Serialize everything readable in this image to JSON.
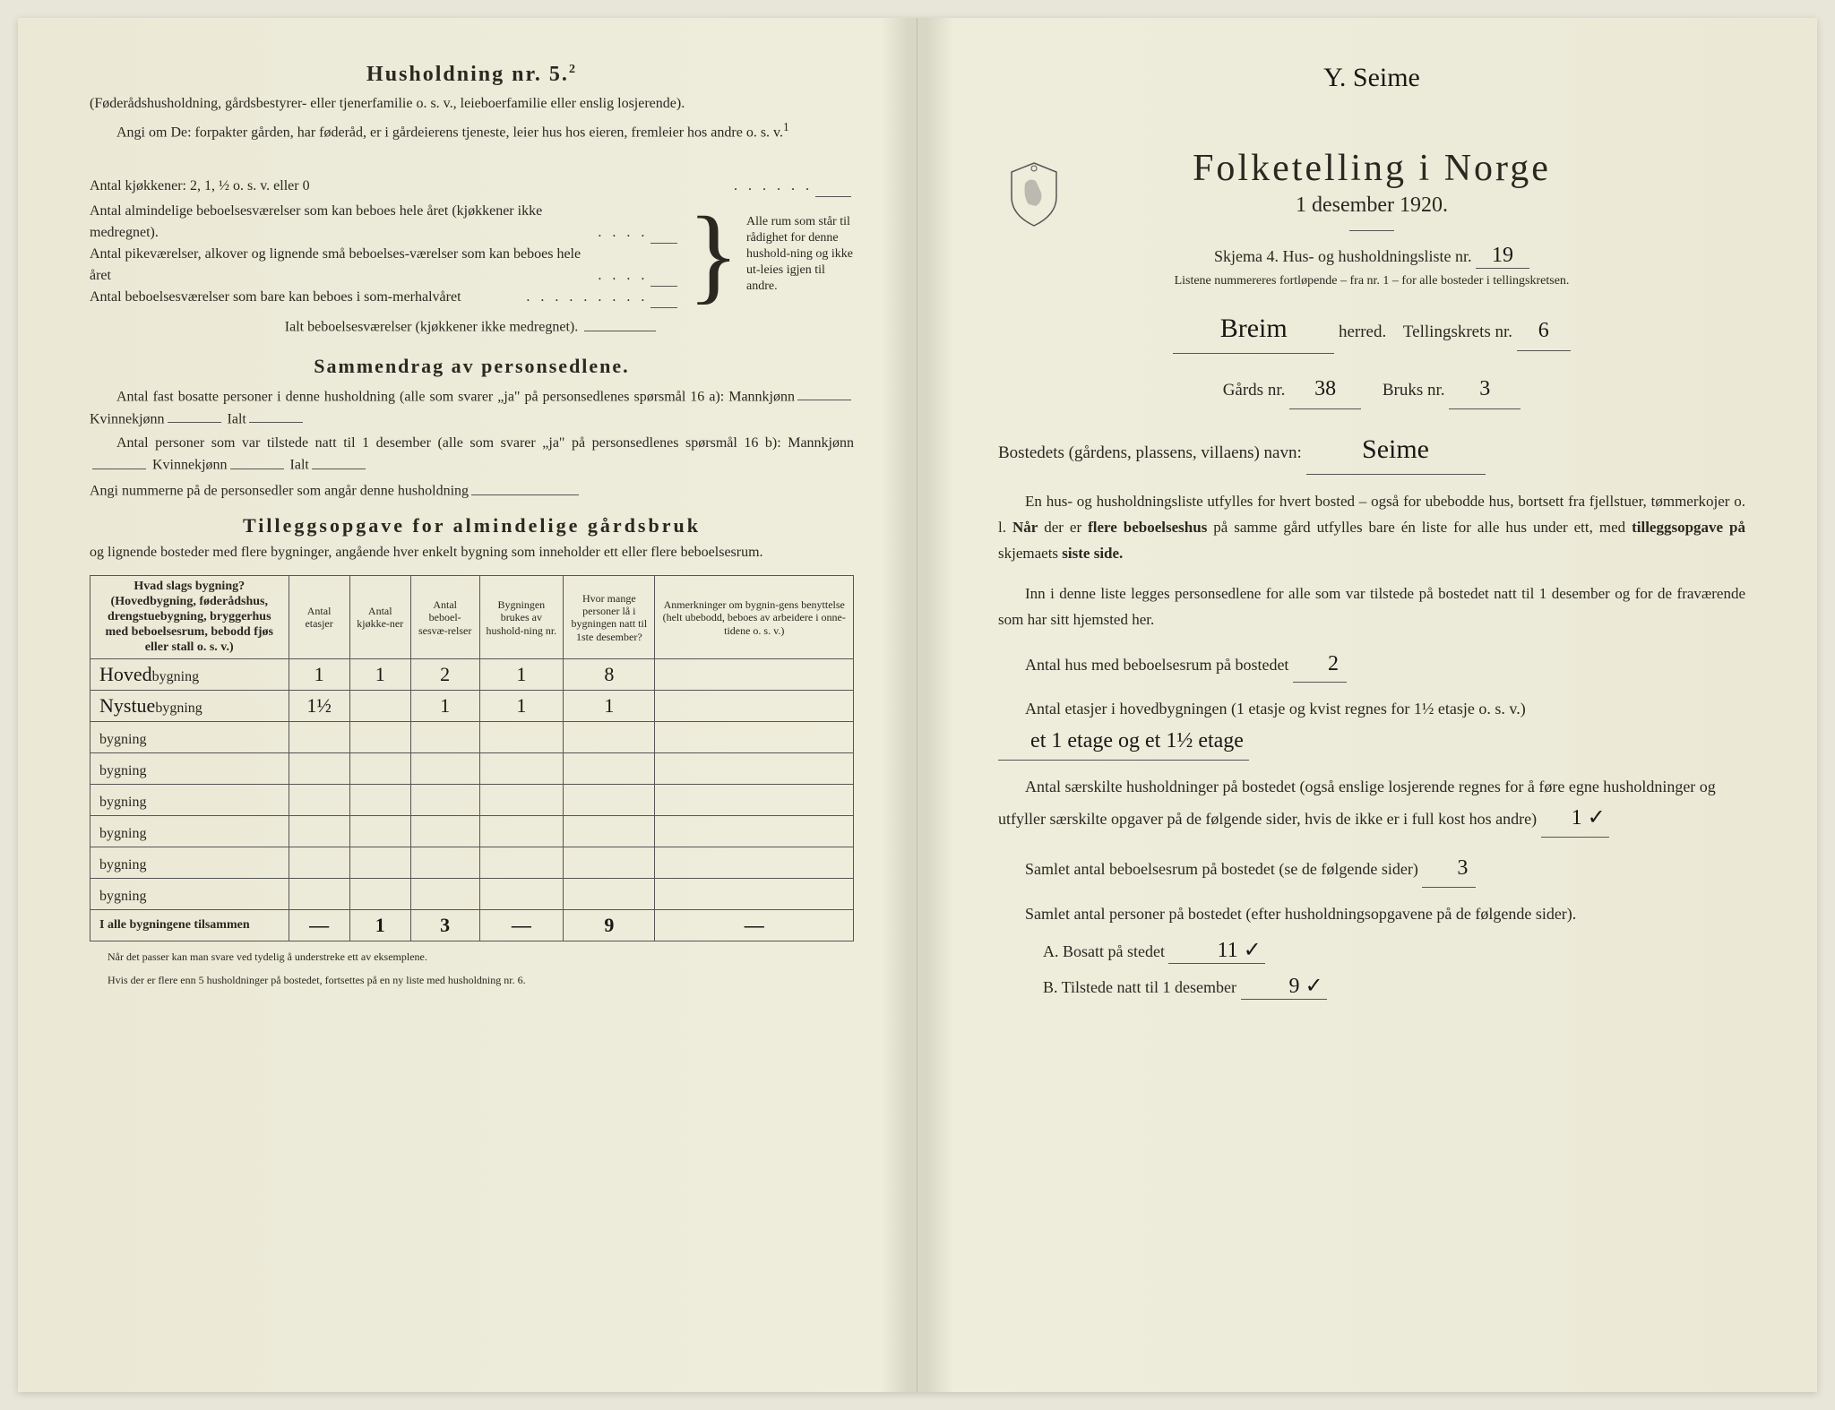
{
  "left": {
    "husholdning_title": "Husholdning nr. 5.",
    "husholdning_sup": "2",
    "husholdning_paren": "(Føderådshusholdning, gårdsbestyrer- eller tjenerfamilie o. s. v., leieboerfamilie eller enslig losjerende).",
    "angi_text": "Angi om De: forpakter gården, har føderåd, er i gårdeierens tjeneste, leier hus hos eieren, fremleier hos andre o. s. v.",
    "kjokkener_label": "Antal kjøkkener: 2, 1, ½ o. s. v. eller 0",
    "bracket_items": [
      "Antal almindelige beboelsesværelser som kan beboes hele året (kjøkkener ikke medregnet).",
      "Antal pikeværelser, alkover og lignende små beboelses-værelser som kan beboes hele året",
      "Antal beboelsesværelser som bare kan beboes i som-merhalvåret"
    ],
    "bracket_right": "Alle rum som står til rådighet for denne hushold-ning og ikke ut-leies igjen til andre.",
    "ialt_line": "Ialt beboelsesværelser (kjøkkener ikke medregnet).",
    "sammendrag_title": "Sammendrag av personsedlene.",
    "sammendrag_line1": "Antal fast bosatte personer i denne husholdning (alle som svarer „ja\" på personsedlenes spørsmål 16 a): Mannkjønn",
    "kvinne": "Kvinnekjønn",
    "ialt": "Ialt",
    "sammendrag_line2": "Antal personer som var tilstede natt til 1 desember (alle som svarer „ja\" på personsedlenes spørsmål 16 b): Mannkjønn",
    "angi_nummerne": "Angi nummerne på de personsedler som angår denne husholdning",
    "tillegg_title": "Tilleggsopgave for almindelige gårdsbruk",
    "tillegg_sub": "og lignende bosteder med flere bygninger, angående hver enkelt bygning som inneholder ett eller flere beboelsesrum.",
    "table": {
      "headers": [
        "Hvad slags bygning?\n(Hovedbygning, føderådshus, drengstuebygning, bryggerhus med beboelsesrum, bebodd fjøs eller stall o. s. v.)",
        "Antal etasjer",
        "Antal kjøkke-ner",
        "Antal beboel-sesvæ-relser",
        "Bygningen brukes av hushold-ning nr.",
        "Hvor mange personer lå i bygningen natt til 1ste desember?",
        "Anmerkninger om bygnin-gens benyttelse (helt ubebodd, beboes av arbeidere i onne-tidene o. s. v.)"
      ],
      "rows": [
        {
          "type_hw": "Hoved",
          "etasjer": "1",
          "kjokken": "1",
          "beboelse": "2",
          "brukes": "1",
          "personer": "8",
          "anm": ""
        },
        {
          "type_hw": "Nystue",
          "etasjer": "1½",
          "kjokken": "",
          "beboelse": "1",
          "brukes": "1",
          "personer": "1",
          "anm": ""
        },
        {
          "type_hw": "",
          "etasjer": "",
          "kjokken": "",
          "beboelse": "",
          "brukes": "",
          "personer": "",
          "anm": ""
        },
        {
          "type_hw": "",
          "etasjer": "",
          "kjokken": "",
          "beboelse": "",
          "brukes": "",
          "personer": "",
          "anm": ""
        },
        {
          "type_hw": "",
          "etasjer": "",
          "kjokken": "",
          "beboelse": "",
          "brukes": "",
          "personer": "",
          "anm": ""
        },
        {
          "type_hw": "",
          "etasjer": "",
          "kjokken": "",
          "beboelse": "",
          "brukes": "",
          "personer": "",
          "anm": ""
        },
        {
          "type_hw": "",
          "etasjer": "",
          "kjokken": "",
          "beboelse": "",
          "brukes": "",
          "personer": "",
          "anm": ""
        },
        {
          "type_hw": "",
          "etasjer": "",
          "kjokken": "",
          "beboelse": "",
          "brukes": "",
          "personer": "",
          "anm": ""
        }
      ],
      "bygning_suffix": "bygning",
      "total_label": "I alle bygningene tilsammen",
      "totals": {
        "etasjer": "—",
        "kjokken": "1",
        "beboelse": "3",
        "brukes": "—",
        "personer": "9",
        "anm": "—"
      }
    },
    "footnote1": "Når det passer kan man svare ved tydelig å understreke ett av eksemplene.",
    "footnote2": "Hvis der er flere enn 5 husholdninger på bostedet, fortsettes på en ny liste med husholdning nr. 6."
  },
  "right": {
    "top_hw": "Y. Seime",
    "main_title": "Folketelling i Norge",
    "subtitle": "1 desember 1920.",
    "schema_line": "Skjema 4. Hus- og husholdningsliste nr.",
    "schema_nr": "19",
    "sub_instruction": "Listene nummereres fortløpende – fra nr. 1 – for alle bosteder i tellingskretsen.",
    "herred_hw": "Breim",
    "herred_label": "herred.",
    "tellingskrets_label": "Tellingskrets nr.",
    "tellingskrets_nr": "6",
    "gards_label": "Gårds nr.",
    "gards_nr": "38",
    "bruks_label": "Bruks nr.",
    "bruks_nr": "3",
    "bosted_label": "Bostedets (gårdens, plassens, villaens) navn:",
    "bosted_hw": "Seime",
    "para1": "En hus- og husholdningsliste utfylles for hvert bosted – også for ubebodde hus, bortsett fra fjellstuer, tømmerkojer o. l. Når der er flere beboelseshus på samme gård utfylles bare én liste for alle hus under ett, med tilleggsopgave på skjemaets siste side.",
    "para2": "Inn i denne liste legges personsedlene for alle som var tilstede på bostedet natt til 1 desember og for de fraværende som har sitt hjemsted her.",
    "q1_label": "Antal hus med beboelsesrum på bostedet",
    "q1_hw": "2",
    "q2_label": "Antal etasjer i hovedbygningen (1 etasje og kvist regnes for 1½ etasje o. s. v.)",
    "q2_hw": "et 1 etage og et 1½ etage",
    "q3_label": "Antal særskilte husholdninger på bostedet (også enslige losjerende regnes for å føre egne husholdninger og utfyller særskilte opgaver på de følgende sider, hvis de ikke er i full kost hos andre)",
    "q3_hw": "1 ✓",
    "q4_label": "Samlet antal beboelsesrum på bostedet (se de følgende sider)",
    "q4_hw": "3",
    "q5_label": "Samlet antal personer på bostedet (efter husholdningsopgavene på de følgende sider).",
    "qA_label": "A. Bosatt på stedet",
    "qA_hw": "11 ✓",
    "qB_label": "B. Tilstede natt til 1 desember",
    "qB_hw": "9 ✓"
  },
  "colors": {
    "paper": "#ebe9d6",
    "ink": "#2a2820",
    "handwriting": "#1a1815"
  }
}
